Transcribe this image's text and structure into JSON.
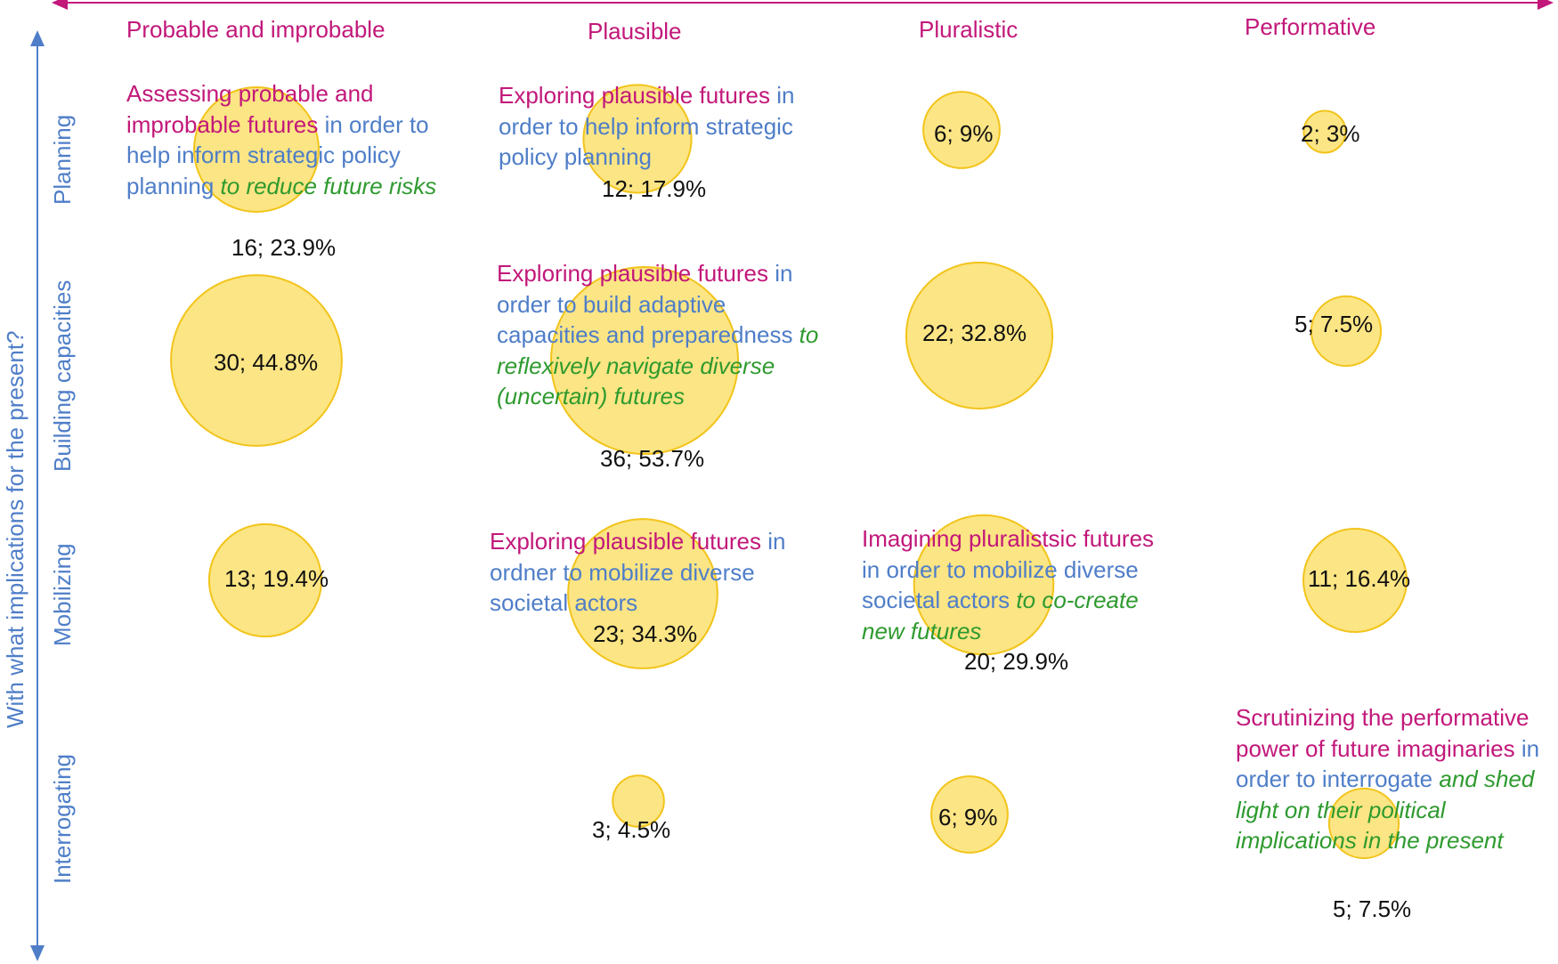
{
  "colors": {
    "bubble_fill": "#fce37a",
    "bubble_stroke": "#f2c41b",
    "column_axis": "#c2187a",
    "row_axis": "#4f7ec8",
    "italic_text": "#2e9a2e",
    "value_text": "#111111"
  },
  "columns": [
    "Probable and improbable",
    "Plausible",
    "Pluralistic",
    "Performative"
  ],
  "rows": [
    "Planning",
    "Building capacities",
    "Mobilizing",
    "Interrogating"
  ],
  "y_axis_title": "With what implications for the present?",
  "descriptions": {
    "planning_probable": {
      "m": "Assessing probable and improbable futures",
      "b": " in order to help inform strategic policy planning",
      "g": " to reduce future risks"
    },
    "planning_plausible": {
      "m": "Exploring plausible futures",
      "b": " in order to help inform strategic policy planning",
      "g": ""
    },
    "capacities_plausible": {
      "m": "Exploring plausible futures",
      "b": " in order to build adaptive capacities and preparedness",
      "g": " to reflexively navigate diverse (uncertain) futures"
    },
    "mobilizing_plausible": {
      "m": "Exploring plausible futures",
      "b": " in ordner to mobilize diverse societal actors",
      "g": ""
    },
    "mobilizing_pluralistic": {
      "m": "Imagining pluralistsic futures",
      "b": " in order to mobilize diverse societal actors",
      "g": " to co-create new futures"
    },
    "interrogating_performative": {
      "m": "Scrutinizing the performative power of future imaginaries",
      "b": " in order to interrogate",
      "g": " and shed light on their political implications in the present"
    }
  },
  "chart_data": {
    "type": "bubble",
    "x_categories": [
      "Probable and improbable",
      "Plausible",
      "Pluralistic",
      "Performative"
    ],
    "y_categories": [
      "Planning",
      "Building capacities",
      "Mobilizing",
      "Interrogating"
    ],
    "ylabel": "With what implications for the present?",
    "points": [
      {
        "x": "Probable and improbable",
        "y": "Planning",
        "count": 16,
        "percent": 23.9,
        "label": "16; 23.9%"
      },
      {
        "x": "Plausible",
        "y": "Planning",
        "count": 12,
        "percent": 17.9,
        "label": "12; 17.9%"
      },
      {
        "x": "Pluralistic",
        "y": "Planning",
        "count": 6,
        "percent": 9,
        "label": "6; 9%"
      },
      {
        "x": "Performative",
        "y": "Planning",
        "count": 2,
        "percent": 3,
        "label": "2; 3%"
      },
      {
        "x": "Probable and improbable",
        "y": "Building capacities",
        "count": 30,
        "percent": 44.8,
        "label": "30; 44.8%"
      },
      {
        "x": "Plausible",
        "y": "Building capacities",
        "count": 36,
        "percent": 53.7,
        "label": "36; 53.7%"
      },
      {
        "x": "Pluralistic",
        "y": "Building capacities",
        "count": 22,
        "percent": 32.8,
        "label": "22; 32.8%"
      },
      {
        "x": "Performative",
        "y": "Building capacities",
        "count": 5,
        "percent": 7.5,
        "label": "5; 7.5%"
      },
      {
        "x": "Probable and improbable",
        "y": "Mobilizing",
        "count": 13,
        "percent": 19.4,
        "label": "13; 19.4%"
      },
      {
        "x": "Plausible",
        "y": "Mobilizing",
        "count": 23,
        "percent": 34.3,
        "label": "23; 34.3%"
      },
      {
        "x": "Pluralistic",
        "y": "Mobilizing",
        "count": 20,
        "percent": 29.9,
        "label": "20; 29.9%"
      },
      {
        "x": "Performative",
        "y": "Mobilizing",
        "count": 11,
        "percent": 16.4,
        "label": "11; 16.4%"
      },
      {
        "x": "Plausible",
        "y": "Interrogating",
        "count": 3,
        "percent": 4.5,
        "label": "3; 4.5%"
      },
      {
        "x": "Pluralistic",
        "y": "Interrogating",
        "count": 6,
        "percent": 9,
        "label": "6; 9%"
      },
      {
        "x": "Performative",
        "y": "Interrogating",
        "count": 5,
        "percent": 7.5,
        "label": "5; 7.5%"
      }
    ]
  }
}
